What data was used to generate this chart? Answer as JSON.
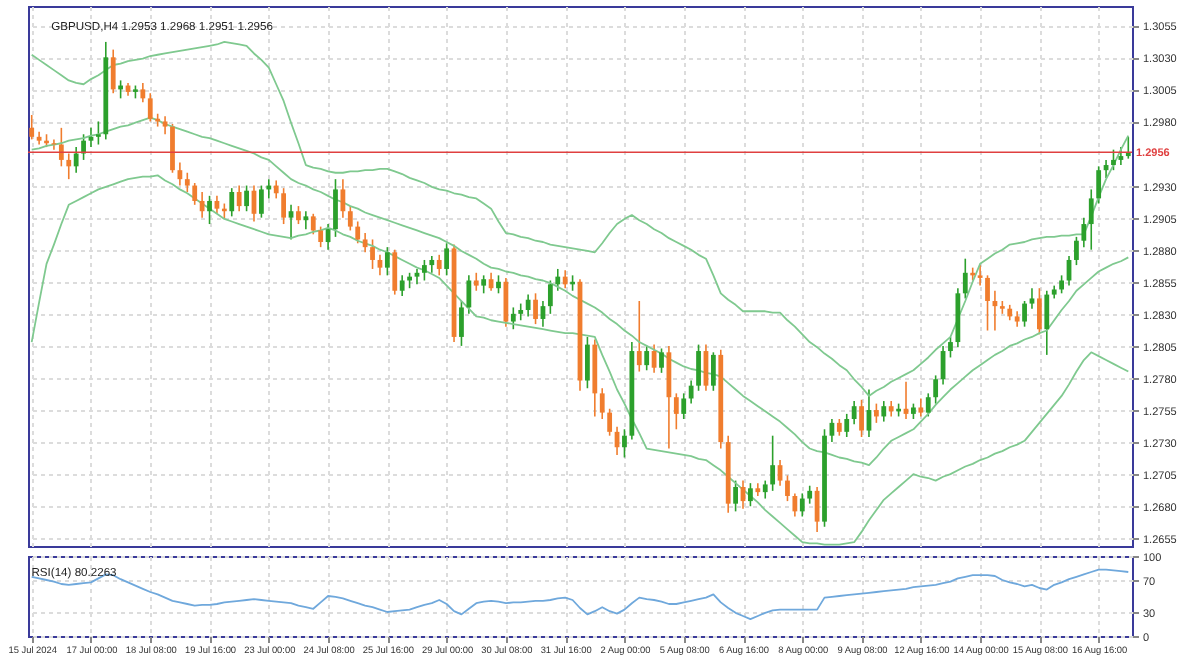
{
  "chart_data": [
    {
      "type": "candlestick",
      "title": "GBPUSD,H4 1.2953 1.2968 1.2951 1.2956",
      "ohlc": [
        [
          1.2975,
          1.2985,
          1.2966,
          1.2968
        ],
        [
          1.2968,
          1.2972,
          1.2962,
          1.2965
        ],
        [
          1.2965,
          1.297,
          1.296,
          1.2963
        ],
        [
          1.2963,
          1.2966,
          1.2958,
          1.2962
        ],
        [
          1.2962,
          1.2975,
          1.2945,
          1.295
        ],
        [
          1.295,
          1.2955,
          1.2935,
          1.2945
        ],
        [
          1.2945,
          1.296,
          1.294,
          1.2955
        ],
        [
          1.2955,
          1.297,
          1.295,
          1.2965
        ],
        [
          1.2965,
          1.2975,
          1.296,
          1.2968
        ],
        [
          1.2968,
          1.298,
          1.2962,
          1.297
        ],
        [
          1.297,
          1.3042,
          1.2966,
          1.303
        ],
        [
          1.303,
          1.3036,
          1.3002,
          1.3005
        ],
        [
          1.3005,
          1.3012,
          1.2998,
          1.3008
        ],
        [
          1.3008,
          1.301,
          1.3,
          1.3003
        ],
        [
          1.3003,
          1.3008,
          1.2998,
          1.3005
        ],
        [
          1.3005,
          1.301,
          1.2995,
          1.2998
        ],
        [
          1.2998,
          1.3002,
          1.298,
          1.2982
        ],
        [
          1.2982,
          1.2986,
          1.2976,
          1.298
        ],
        [
          1.298,
          1.2984,
          1.297,
          1.2976
        ],
        [
          1.2976,
          1.2978,
          1.294,
          1.2942
        ],
        [
          1.2942,
          1.2948,
          1.293,
          1.2935
        ],
        [
          1.2935,
          1.294,
          1.2925,
          1.293
        ],
        [
          1.293,
          1.2932,
          1.2915,
          1.2918
        ],
        [
          1.2918,
          1.2925,
          1.2905,
          1.291
        ],
        [
          1.291,
          1.2922,
          1.29,
          1.2918
        ],
        [
          1.2918,
          1.2922,
          1.2908,
          1.2912
        ],
        [
          1.2912,
          1.2916,
          1.2904,
          1.291
        ],
        [
          1.291,
          1.2928,
          1.2906,
          1.2925
        ],
        [
          1.2925,
          1.293,
          1.291,
          1.2914
        ],
        [
          1.2914,
          1.293,
          1.291,
          1.2926
        ],
        [
          1.2926,
          1.293,
          1.2902,
          1.2908
        ],
        [
          1.2908,
          1.293,
          1.2905,
          1.2927
        ],
        [
          1.2927,
          1.2935,
          1.292,
          1.293
        ],
        [
          1.293,
          1.2934,
          1.292,
          1.2924
        ],
        [
          1.2924,
          1.2928,
          1.29,
          1.2905
        ],
        [
          1.2905,
          1.2915,
          1.2888,
          1.291
        ],
        [
          1.291,
          1.2914,
          1.29,
          1.2903
        ],
        [
          1.2903,
          1.291,
          1.2896,
          1.2906
        ],
        [
          1.2906,
          1.2908,
          1.2892,
          1.2895
        ],
        [
          1.2895,
          1.2898,
          1.2882,
          1.2886
        ],
        [
          1.2886,
          1.29,
          1.288,
          1.2896
        ],
        [
          1.2896,
          1.2935,
          1.289,
          1.2927
        ],
        [
          1.2927,
          1.2935,
          1.2905,
          1.291
        ],
        [
          1.291,
          1.2914,
          1.2895,
          1.2898
        ],
        [
          1.2898,
          1.2902,
          1.2885,
          1.2888
        ],
        [
          1.2888,
          1.2893,
          1.2878,
          1.2882
        ],
        [
          1.2882,
          1.2888,
          1.2865,
          1.2872
        ],
        [
          1.2872,
          1.2876,
          1.286,
          1.2866
        ],
        [
          1.2866,
          1.2882,
          1.286,
          1.2878
        ],
        [
          1.2878,
          1.288,
          1.2845,
          1.2848
        ],
        [
          1.2848,
          1.286,
          1.2844,
          1.2856
        ],
        [
          1.2856,
          1.2862,
          1.285,
          1.2859
        ],
        [
          1.2859,
          1.2865,
          1.2853,
          1.2862
        ],
        [
          1.2862,
          1.2872,
          1.2856,
          1.2868
        ],
        [
          1.2868,
          1.2875,
          1.2862,
          1.2872
        ],
        [
          1.2872,
          1.2876,
          1.286,
          1.2865
        ],
        [
          1.2865,
          1.2885,
          1.286,
          1.2881
        ],
        [
          1.2881,
          1.2884,
          1.2808,
          1.2812
        ],
        [
          1.2812,
          1.284,
          1.2805,
          1.2835
        ],
        [
          1.2835,
          1.286,
          1.283,
          1.2856
        ],
        [
          1.2856,
          1.2862,
          1.2848,
          1.2852
        ],
        [
          1.2852,
          1.286,
          1.2846,
          1.2857
        ],
        [
          1.2857,
          1.2862,
          1.2848,
          1.285
        ],
        [
          1.285,
          1.286,
          1.2846,
          1.2855
        ],
        [
          1.2855,
          1.2858,
          1.282,
          1.2824
        ],
        [
          1.2824,
          1.2835,
          1.2818,
          1.283
        ],
        [
          1.283,
          1.2838,
          1.2825,
          1.2833
        ],
        [
          1.2833,
          1.2845,
          1.2828,
          1.2841
        ],
        [
          1.2841,
          1.2846,
          1.2822,
          1.2826
        ],
        [
          1.2826,
          1.284,
          1.282,
          1.2836
        ],
        [
          1.2836,
          1.2856,
          1.283,
          1.2853
        ],
        [
          1.2853,
          1.2865,
          1.2848,
          1.2859
        ],
        [
          1.2859,
          1.2864,
          1.285,
          1.2853
        ],
        [
          1.2853,
          1.286,
          1.2848,
          1.2855
        ],
        [
          1.2855,
          1.2857,
          1.277,
          1.2778
        ],
        [
          1.2778,
          1.2812,
          1.2772,
          1.2806
        ],
        [
          1.2806,
          1.281,
          1.275,
          1.2768
        ],
        [
          1.2768,
          1.2772,
          1.2748,
          1.2753
        ],
        [
          1.2753,
          1.2756,
          1.2735,
          1.2738
        ],
        [
          1.2738,
          1.2742,
          1.272,
          1.2726
        ],
        [
          1.2726,
          1.274,
          1.2718,
          1.2735
        ],
        [
          1.2735,
          1.2808,
          1.2732,
          1.2801
        ],
        [
          1.2801,
          1.284,
          1.2785,
          1.279
        ],
        [
          1.279,
          1.2805,
          1.2786,
          1.2801
        ],
        [
          1.2801,
          1.2806,
          1.2784,
          1.2788
        ],
        [
          1.2788,
          1.2803,
          1.2784,
          1.28
        ],
        [
          1.28,
          1.2805,
          1.2725,
          1.2765
        ],
        [
          1.2765,
          1.2768,
          1.274,
          1.2752
        ],
        [
          1.2752,
          1.2768,
          1.2748,
          1.2764
        ],
        [
          1.2764,
          1.2778,
          1.276,
          1.2774
        ],
        [
          1.2774,
          1.2806,
          1.277,
          1.2801
        ],
        [
          1.2801,
          1.2806,
          1.277,
          1.2774
        ],
        [
          1.2774,
          1.28,
          1.277,
          1.2798
        ],
        [
          1.2798,
          1.2802,
          1.2725,
          1.273
        ],
        [
          1.273,
          1.2735,
          1.2675,
          1.2682
        ],
        [
          1.2682,
          1.27,
          1.2676,
          1.2695
        ],
        [
          1.2695,
          1.27,
          1.2678,
          1.2684
        ],
        [
          1.2684,
          1.2698,
          1.268,
          1.2694
        ],
        [
          1.2694,
          1.2698,
          1.2688,
          1.2691
        ],
        [
          1.2691,
          1.27,
          1.2686,
          1.2697
        ],
        [
          1.2697,
          1.2735,
          1.2692,
          1.2712
        ],
        [
          1.2712,
          1.2716,
          1.2696,
          1.27
        ],
        [
          1.27,
          1.2704,
          1.2684,
          1.2688
        ],
        [
          1.2688,
          1.269,
          1.2672,
          1.2676
        ],
        [
          1.2676,
          1.269,
          1.2672,
          1.2686
        ],
        [
          1.2686,
          1.2696,
          1.2682,
          1.2692
        ],
        [
          1.2692,
          1.2695,
          1.266,
          1.2668
        ],
        [
          1.2668,
          1.274,
          1.2664,
          1.2735
        ],
        [
          1.2735,
          1.2748,
          1.273,
          1.2745
        ],
        [
          1.2745,
          1.2748,
          1.2735,
          1.2738
        ],
        [
          1.2738,
          1.2752,
          1.2734,
          1.2748
        ],
        [
          1.2748,
          1.2762,
          1.2744,
          1.2758
        ],
        [
          1.2758,
          1.2763,
          1.2734,
          1.2739
        ],
        [
          1.2739,
          1.2771,
          1.2734,
          1.2755
        ],
        [
          1.2755,
          1.276,
          1.2745,
          1.275
        ],
        [
          1.275,
          1.2762,
          1.2746,
          1.2758
        ],
        [
          1.2758,
          1.2762,
          1.275,
          1.2754
        ],
        [
          1.2754,
          1.276,
          1.275,
          1.2756
        ],
        [
          1.2756,
          1.2777,
          1.2748,
          1.2752
        ],
        [
          1.2752,
          1.276,
          1.2748,
          1.2757
        ],
        [
          1.2757,
          1.2764,
          1.275,
          1.2753
        ],
        [
          1.2753,
          1.2768,
          1.275,
          1.2765
        ],
        [
          1.2765,
          1.2782,
          1.276,
          1.2779
        ],
        [
          1.2779,
          1.2805,
          1.2775,
          1.2801
        ],
        [
          1.2801,
          1.2812,
          1.2796,
          1.2808
        ],
        [
          1.2808,
          1.285,
          1.2804,
          1.2846
        ],
        [
          1.2846,
          1.2873,
          1.2842,
          1.2862
        ],
        [
          1.2862,
          1.2866,
          1.2856,
          1.286
        ],
        [
          1.286,
          1.2868,
          1.2852,
          1.2858
        ],
        [
          1.2858,
          1.286,
          1.2817,
          1.284
        ],
        [
          1.284,
          1.2848,
          1.2817,
          1.2836
        ],
        [
          1.2836,
          1.284,
          1.283,
          1.2834
        ],
        [
          1.2834,
          1.2837,
          1.2825,
          1.2828
        ],
        [
          1.2828,
          1.2832,
          1.282,
          1.2824
        ],
        [
          1.2824,
          1.284,
          1.282,
          1.2838
        ],
        [
          1.2838,
          1.285,
          1.2834,
          1.2842
        ],
        [
          1.2842,
          1.285,
          1.2814,
          1.2818
        ],
        [
          1.2818,
          1.2848,
          1.2798,
          1.2845
        ],
        [
          1.2845,
          1.2852,
          1.2842,
          1.2849
        ],
        [
          1.2849,
          1.286,
          1.2846,
          1.2856
        ],
        [
          1.2856,
          1.2875,
          1.2852,
          1.2872
        ],
        [
          1.2872,
          1.289,
          1.2868,
          1.2887
        ],
        [
          1.2887,
          1.2905,
          1.2882,
          1.29
        ],
        [
          1.29,
          1.2927,
          1.288,
          1.292
        ],
        [
          1.292,
          1.2945,
          1.2916,
          1.2942
        ],
        [
          1.2942,
          1.295,
          1.2936,
          1.2946
        ],
        [
          1.2946,
          1.2958,
          1.2942,
          1.295
        ],
        [
          1.295,
          1.296,
          1.2946,
          1.2953
        ],
        [
          1.2953,
          1.2968,
          1.2951,
          1.2956
        ]
      ],
      "colors": [
        "#f07d2e",
        "#f07d2e",
        "#f07d2e",
        "#f07d2e",
        "#f07d2e",
        "#f07d2e",
        "#2ca02c",
        "#2ca02c",
        "#2ca02c",
        "#2ca02c",
        "#2ca02c",
        "#f07d2e",
        "#2ca02c",
        "#f07d2e",
        "#2ca02c",
        "#f07d2e",
        "#f07d2e",
        "#f07d2e",
        "#f07d2e",
        "#f07d2e",
        "#f07d2e",
        "#f07d2e",
        "#f07d2e",
        "#f07d2e",
        "#2ca02c",
        "#f07d2e",
        "#f07d2e",
        "#2ca02c",
        "#f07d2e",
        "#2ca02c",
        "#f07d2e",
        "#2ca02c",
        "#2ca02c",
        "#f07d2e",
        "#f07d2e",
        "#2ca02c",
        "#f07d2e",
        "#2ca02c",
        "#f07d2e",
        "#f07d2e",
        "#2ca02c",
        "#2ca02c",
        "#f07d2e",
        "#f07d2e",
        "#f07d2e",
        "#f07d2e",
        "#f07d2e",
        "#f07d2e",
        "#2ca02c",
        "#f07d2e",
        "#2ca02c",
        "#2ca02c",
        "#2ca02c",
        "#2ca02c",
        "#2ca02c",
        "#f07d2e",
        "#2ca02c",
        "#f07d2e",
        "#2ca02c",
        "#2ca02c",
        "#f07d2e",
        "#2ca02c",
        "#f07d2e",
        "#2ca02c",
        "#f07d2e",
        "#2ca02c",
        "#2ca02c",
        "#2ca02c",
        "#f07d2e",
        "#2ca02c",
        "#2ca02c",
        "#2ca02c",
        "#f07d2e",
        "#2ca02c",
        "#f07d2e",
        "#2ca02c",
        "#f07d2e",
        "#f07d2e",
        "#f07d2e",
        "#f07d2e",
        "#2ca02c",
        "#2ca02c",
        "#f07d2e",
        "#2ca02c",
        "#f07d2e",
        "#2ca02c",
        "#f07d2e",
        "#f07d2e",
        "#2ca02c",
        "#2ca02c",
        "#2ca02c",
        "#f07d2e",
        "#2ca02c",
        "#f07d2e",
        "#f07d2e",
        "#2ca02c",
        "#f07d2e",
        "#2ca02c",
        "#f07d2e",
        "#2ca02c",
        "#2ca02c",
        "#f07d2e",
        "#f07d2e",
        "#f07d2e",
        "#2ca02c",
        "#2ca02c",
        "#f07d2e",
        "#2ca02c",
        "#2ca02c",
        "#f07d2e",
        "#2ca02c",
        "#2ca02c",
        "#f07d2e",
        "#2ca02c",
        "#f07d2e",
        "#2ca02c",
        "#f07d2e",
        "#2ca02c",
        "#f07d2e",
        "#2ca02c",
        "#f07d2e",
        "#2ca02c",
        "#2ca02c",
        "#2ca02c",
        "#2ca02c",
        "#2ca02c",
        "#2ca02c",
        "#f07d2e",
        "#f07d2e",
        "#f07d2e",
        "#f07d2e",
        "#f07d2e",
        "#f07d2e",
        "#f07d2e",
        "#2ca02c",
        "#2ca02c",
        "#f07d2e",
        "#2ca02c",
        "#2ca02c",
        "#2ca02c",
        "#2ca02c",
        "#2ca02c",
        "#2ca02c",
        "#2ca02c",
        "#2ca02c",
        "#2ca02c",
        "#2ca02c",
        "#2ca02c",
        "#2ca02c"
      ],
      "series": [
        {
          "type": "line",
          "color": "#7fc98f",
          "values": [
            1.3032,
            1.3028,
            1.3024,
            1.302,
            1.3016,
            1.3012,
            1.301,
            1.3009,
            1.3013,
            1.3016,
            1.302,
            1.3024,
            1.3025,
            1.3027,
            1.3028,
            1.3029,
            1.3031,
            1.3032,
            1.3033,
            1.3034,
            1.3035,
            1.3036,
            1.3037,
            1.3038,
            1.3039,
            1.304,
            1.3042,
            1.3041,
            1.304,
            1.3039,
            1.3033,
            1.3028,
            1.3022,
            1.3009,
            1.2996,
            1.2979,
            1.2963,
            1.2946,
            1.2944,
            1.2943,
            1.2941,
            1.294,
            1.294,
            1.2941,
            1.2941,
            1.2942,
            1.2942,
            1.2943,
            1.2943,
            1.2941,
            1.2939,
            1.2936,
            1.2934,
            1.2932,
            1.2929,
            1.2927,
            1.2926,
            1.2924,
            1.2923,
            1.2921,
            1.292,
            1.2916,
            1.2912,
            1.2902,
            1.2893,
            1.2892,
            1.289,
            1.2889,
            1.2887,
            1.2886,
            1.2884,
            1.2883,
            1.2882,
            1.2881,
            1.288,
            1.2879,
            1.2878,
            1.2885,
            1.2893,
            1.29,
            1.2904,
            1.2907,
            1.2903,
            1.29,
            1.2896,
            1.2893,
            1.2889,
            1.2886,
            1.2883,
            1.288,
            1.2876,
            1.2873,
            1.286,
            1.2846,
            1.2841,
            1.2837,
            1.2832,
            1.2832,
            1.2832,
            1.2832,
            1.2831,
            1.2831,
            1.2825,
            1.282,
            1.2814,
            1.2808,
            1.2804,
            1.2799,
            1.2795,
            1.279,
            1.2786,
            1.2779,
            1.2773,
            1.2766,
            1.277,
            1.2773,
            1.2777,
            1.278,
            1.2783,
            1.2786,
            1.2791,
            1.2796,
            1.2802,
            1.2807,
            1.2812,
            1.2826,
            1.284,
            1.2855,
            1.2869,
            1.2873,
            1.2877,
            1.288,
            1.2884,
            1.2885,
            1.2886,
            1.2888,
            1.2889,
            1.289,
            1.289,
            1.2891,
            1.2891,
            1.2892,
            1.2892,
            1.2906,
            1.2921,
            1.2935,
            1.2946,
            1.2958,
            1.2969
          ]
        },
        {
          "type": "line",
          "color": "#7fc98f",
          "values": [
            1.2958,
            1.2959,
            1.2961,
            1.2962,
            1.2963,
            1.2965,
            1.2966,
            1.2967,
            1.2969,
            1.297,
            1.2972,
            1.2974,
            1.2976,
            1.2977,
            1.2979,
            1.2981,
            1.2983,
            1.2981,
            1.2978,
            1.2976,
            1.2974,
            1.2972,
            1.297,
            1.2968,
            1.2967,
            1.2965,
            1.2963,
            1.2961,
            1.2959,
            1.2957,
            1.2955,
            1.2952,
            1.295,
            1.2945,
            1.294,
            1.2935,
            1.2932,
            1.293,
            1.2927,
            1.2925,
            1.2922,
            1.2919,
            1.2917,
            1.2914,
            1.2912,
            1.2909,
            1.2907,
            1.2905,
            1.2903,
            1.2901,
            1.2899,
            1.2897,
            1.2895,
            1.2893,
            1.2891,
            1.2889,
            1.2886,
            1.2883,
            1.2879,
            1.2876,
            1.2873,
            1.2869,
            1.2866,
            1.2865,
            1.2863,
            1.2862,
            1.286,
            1.2859,
            1.2857,
            1.2856,
            1.2854,
            1.2851,
            1.2848,
            1.2844,
            1.2841,
            1.2838,
            1.2835,
            1.2831,
            1.2826,
            1.2822,
            1.2817,
            1.2813,
            1.2808,
            1.2805,
            1.2802,
            1.2799,
            1.2795,
            1.2792,
            1.2789,
            1.2787,
            1.2786,
            1.2784,
            1.2783,
            1.2781,
            1.2776,
            1.2771,
            1.2766,
            1.2762,
            1.2758,
            1.2754,
            1.275,
            1.2746,
            1.2741,
            1.2736,
            1.273,
            1.2725,
            1.2723,
            1.2722,
            1.272,
            1.2718,
            1.2717,
            1.2715,
            1.2714,
            1.2712,
            1.2718,
            1.2725,
            1.2731,
            1.2734,
            1.2737,
            1.274,
            1.2746,
            1.2752,
            1.2759,
            1.2765,
            1.2771,
            1.2776,
            1.2781,
            1.2786,
            1.279,
            1.2794,
            1.2798,
            1.2801,
            1.2805,
            1.2807,
            1.281,
            1.2812,
            1.2815,
            1.2817,
            1.2825,
            1.2833,
            1.284,
            1.2848,
            1.2853,
            1.2858,
            1.2863,
            1.2866,
            1.2869,
            1.2871,
            1.2874
          ]
        },
        {
          "type": "line",
          "color": "#7fc98f",
          "values": [
            1.2808,
            1.2839,
            1.2869,
            1.2884,
            1.29,
            1.2915,
            1.2918,
            1.2921,
            1.2924,
            1.2927,
            1.2929,
            1.2931,
            1.2933,
            1.2935,
            1.2936,
            1.2937,
            1.2937,
            1.2938,
            1.2934,
            1.2931,
            1.2927,
            1.2924,
            1.292,
            1.2916,
            1.2912,
            1.2908,
            1.2904,
            1.2902,
            1.29,
            1.2898,
            1.2896,
            1.2894,
            1.2892,
            1.2891,
            1.289,
            1.2889,
            1.2891,
            1.2892,
            1.2894,
            1.2895,
            1.2897,
            1.2895,
            1.2892,
            1.289,
            1.2887,
            1.2885,
            1.2883,
            1.288,
            1.2878,
            1.2875,
            1.2872,
            1.2869,
            1.2866,
            1.2864,
            1.2861,
            1.2858,
            1.2852,
            1.2846,
            1.284,
            1.2834,
            1.2828,
            1.2827,
            1.2825,
            1.2824,
            1.2823,
            1.2822,
            1.2821,
            1.282,
            1.2819,
            1.2818,
            1.2817,
            1.2816,
            1.2815,
            1.2815,
            1.2814,
            1.2813,
            1.2812,
            1.2798,
            1.2785,
            1.2771,
            1.276,
            1.2748,
            1.2737,
            1.2725,
            1.2724,
            1.2723,
            1.2722,
            1.2721,
            1.272,
            1.2719,
            1.2717,
            1.2716,
            1.2712,
            1.2708,
            1.2703,
            1.2698,
            1.2693,
            1.2688,
            1.2683,
            1.2677,
            1.2672,
            1.2667,
            1.2662,
            1.2657,
            1.2652,
            1.2651,
            1.2651,
            1.265,
            1.265,
            1.265,
            1.2651,
            1.2652,
            1.266,
            1.2669,
            1.2677,
            1.2685,
            1.269,
            1.2695,
            1.27,
            1.2705,
            1.2703,
            1.2702,
            1.27,
            1.2703,
            1.2705,
            1.2708,
            1.2711,
            1.2713,
            1.2716,
            1.2718,
            1.2721,
            1.2723,
            1.2726,
            1.2728,
            1.2731,
            1.2738,
            1.2745,
            1.2752,
            1.2759,
            1.2766,
            1.2775,
            1.2785,
            1.2794,
            1.28,
            1.2797,
            1.2794,
            1.2791,
            1.2788,
            1.2785
          ]
        }
      ],
      "ylim": [
        1.2649,
        1.307
      ],
      "yticks": [
        1.2655,
        {
          "value": 1.268,
          "label": "1.2680"
        },
        1.2705,
        {
          "value": 1.273,
          "label": "1.2730"
        },
        1.2755,
        {
          "value": 1.278,
          "label": "1.2780"
        },
        1.2805,
        {
          "value": 1.283,
          "label": "1.2830"
        },
        1.2855,
        {
          "value": 1.288,
          "label": "1.2880"
        },
        1.2905,
        {
          "value": 1.293,
          "label": "1.2930"
        },
        {
          "value": 1.298,
          "label": "1.2980"
        },
        1.3005,
        {
          "value": 1.303,
          "label": "1.3030"
        },
        1.3055
      ],
      "ref_lines": [
        {
          "axis": "y",
          "value": 1.2956,
          "label": "1.2956",
          "color": "#e04040"
        }
      ],
      "grid": true,
      "tick_labels": "y"
    },
    {
      "type": "line",
      "title": "RSI(14) 80.2263",
      "categories": [
        "15 Jul 2024",
        null,
        null,
        null,
        null,
        null,
        null,
        null,
        "17 Jul 00:00",
        null,
        null,
        null,
        null,
        null,
        null,
        null,
        "18 Jul 08:00",
        null,
        null,
        null,
        null,
        null,
        null,
        null,
        "19 Jul 16:00",
        null,
        null,
        null,
        null,
        null,
        null,
        null,
        "23 Jul 00:00",
        null,
        null,
        null,
        null,
        null,
        null,
        null,
        "24 Jul 08:00",
        null,
        null,
        null,
        null,
        null,
        null,
        null,
        "25 Jul 16:00",
        null,
        null,
        null,
        null,
        null,
        null,
        null,
        "29 Jul 00:00",
        null,
        null,
        null,
        null,
        null,
        null,
        null,
        "30 Jul 08:00",
        null,
        null,
        null,
        null,
        null,
        null,
        null,
        "31 Jul 16:00",
        null,
        null,
        null,
        null,
        null,
        null,
        null,
        "2 Aug 00:00",
        null,
        null,
        null,
        null,
        null,
        null,
        null,
        "5 Aug 08:00",
        null,
        null,
        null,
        null,
        null,
        null,
        null,
        "6 Aug 16:00",
        null,
        null,
        null,
        null,
        null,
        null,
        null,
        "8 Aug 00:00",
        null,
        null,
        null,
        null,
        null,
        null,
        null,
        "9 Aug 08:00",
        null,
        null,
        null,
        null,
        null,
        null,
        null,
        "12 Aug 16:00",
        null,
        null,
        null,
        null,
        null,
        null,
        null,
        "14 Aug 00:00",
        null,
        null,
        null,
        null,
        null,
        null,
        null,
        "15 Aug 08:00",
        null,
        null,
        null,
        null,
        null,
        null,
        null,
        "16 Aug 16:00",
        null,
        null,
        null,
        null
      ],
      "values": [
        74,
        72,
        70,
        68,
        65,
        64,
        65,
        66,
        67,
        72,
        77,
        76,
        71,
        67,
        63,
        59,
        55,
        52,
        48,
        44,
        42,
        40,
        38,
        39,
        39,
        40,
        42,
        43,
        44,
        45,
        46,
        45,
        44,
        43,
        42,
        41,
        38,
        36,
        34,
        42,
        50,
        49,
        47,
        44,
        41,
        38,
        36,
        33,
        30,
        31,
        32,
        33,
        36,
        39,
        41,
        45,
        40,
        31,
        27,
        34,
        41,
        43,
        44,
        43,
        41,
        42,
        42,
        43,
        44,
        44,
        45,
        47,
        48,
        45,
        35,
        27,
        31,
        36,
        31,
        28,
        33,
        41,
        48,
        46,
        45,
        43,
        40,
        40,
        42,
        44,
        46,
        48,
        52,
        42,
        35,
        29,
        25,
        21,
        25,
        29,
        32,
        33,
        33,
        33,
        33,
        33,
        33,
        48,
        49,
        50,
        51,
        52,
        53,
        54,
        55,
        56,
        57,
        58,
        59,
        61,
        62,
        63,
        64,
        66,
        68,
        72,
        74,
        76,
        76,
        76,
        75,
        70,
        67,
        65,
        62,
        64,
        60,
        58,
        64,
        67,
        71,
        74,
        77,
        80,
        83,
        83,
        82,
        81,
        80
      ],
      "color": "#6fa8dc",
      "ylim": [
        0,
        100
      ],
      "yticks": [
        0,
        30,
        70,
        100
      ],
      "grid": true
    }
  ]
}
